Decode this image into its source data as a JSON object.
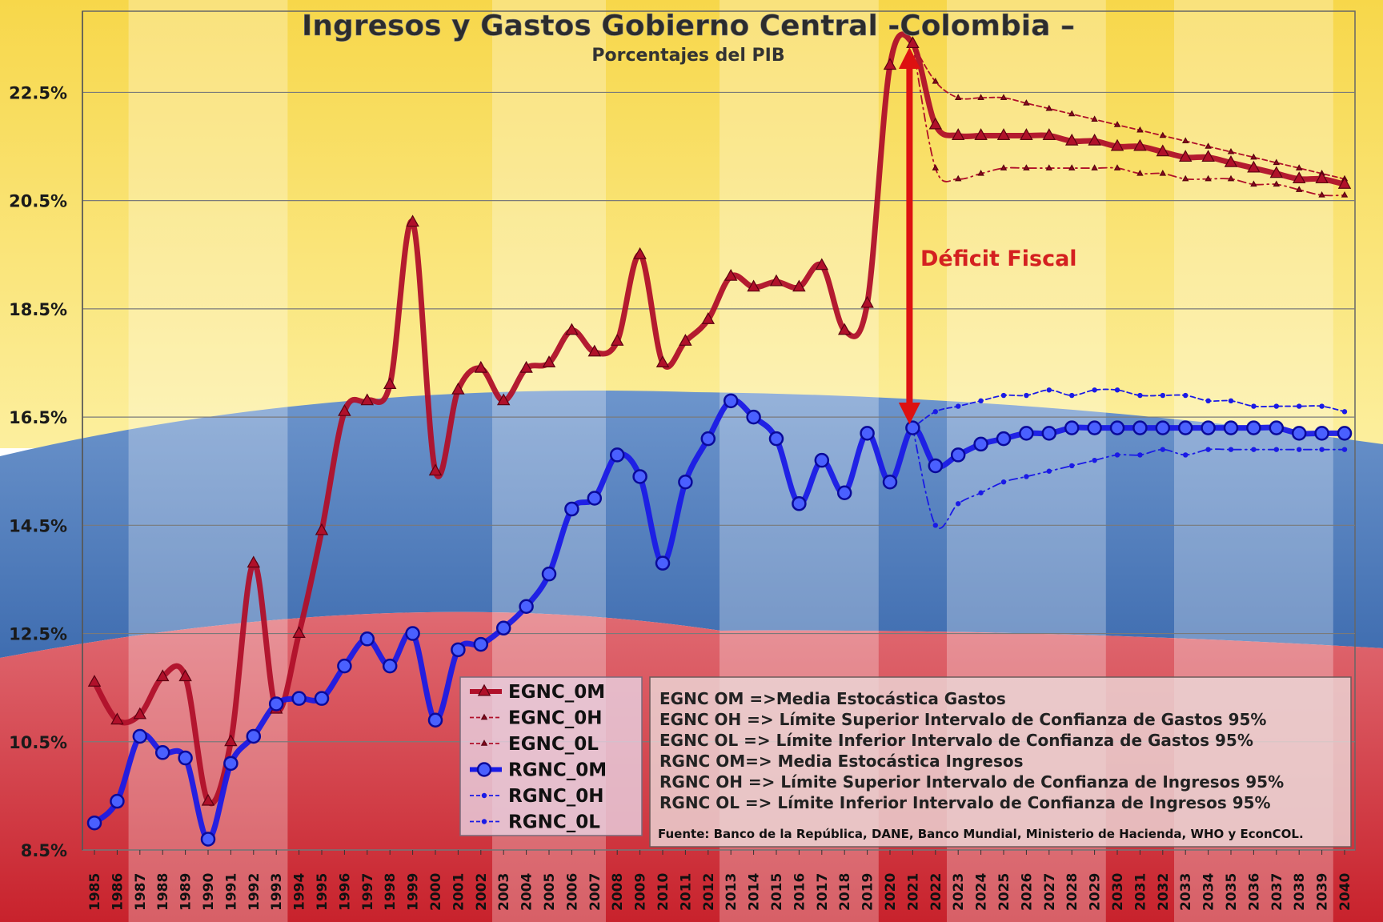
{
  "chart_data": {
    "type": "line",
    "title": "Ingresos y Gastos Gobierno Central -Colombia –",
    "subtitle": "Porcentajes del PIB",
    "ylim": [
      8.5,
      24.0
    ],
    "yticks": [
      "8.5%",
      "10.5%",
      "12.5%",
      "14.5%",
      "16.5%",
      "18.5%",
      "20.5%",
      "22.5%"
    ],
    "ytick_values": [
      8.5,
      10.5,
      12.5,
      14.5,
      16.5,
      18.5,
      20.5,
      22.5
    ],
    "x": [
      1985,
      1986,
      1987,
      1988,
      1989,
      1990,
      1991,
      1992,
      1993,
      1994,
      1995,
      1996,
      1997,
      1998,
      1999,
      2000,
      2001,
      2002,
      2003,
      2004,
      2005,
      2006,
      2007,
      2008,
      2009,
      2010,
      2011,
      2012,
      2013,
      2014,
      2015,
      2016,
      2017,
      2018,
      2019,
      2020,
      2021,
      2022,
      2023,
      2024,
      2025,
      2026,
      2027,
      2028,
      2029,
      2030,
      2031,
      2032,
      2033,
      2034,
      2035,
      2036,
      2037,
      2038,
      2039,
      2040
    ],
    "series": [
      {
        "name": "EGNC_0M",
        "color": "#b0102a",
        "marker": "triangle",
        "values": [
          11.6,
          10.9,
          11.0,
          11.7,
          11.7,
          9.4,
          10.5,
          13.8,
          11.1,
          12.5,
          14.4,
          16.6,
          16.8,
          17.1,
          20.1,
          15.5,
          17.0,
          17.4,
          16.8,
          17.4,
          17.5,
          18.1,
          17.7,
          17.9,
          19.5,
          17.5,
          17.9,
          18.3,
          19.1,
          18.9,
          19.0,
          18.9,
          19.3,
          18.1,
          18.6,
          23.0,
          23.4,
          21.9,
          21.7,
          21.7,
          21.7,
          21.7,
          21.7,
          21.6,
          21.6,
          21.5,
          21.5,
          21.4,
          21.3,
          21.3,
          21.2,
          21.1,
          21.0,
          20.9,
          20.9,
          20.8
        ]
      },
      {
        "name": "EGNC_0H",
        "color": "#b0102a",
        "marker": "small-triangle",
        "dashed": true,
        "values": [
          null,
          null,
          null,
          null,
          null,
          null,
          null,
          null,
          null,
          null,
          null,
          null,
          null,
          null,
          null,
          null,
          null,
          null,
          null,
          null,
          null,
          null,
          null,
          null,
          null,
          null,
          null,
          null,
          null,
          null,
          null,
          null,
          null,
          null,
          null,
          null,
          23.4,
          22.7,
          22.4,
          22.4,
          22.4,
          22.3,
          22.2,
          22.1,
          22.0,
          21.9,
          21.8,
          21.7,
          21.6,
          21.5,
          21.4,
          21.3,
          21.2,
          21.1,
          21.0,
          20.9
        ]
      },
      {
        "name": "EGNC_0L",
        "color": "#b0102a",
        "marker": "small-triangle",
        "dashed": true,
        "values": [
          null,
          null,
          null,
          null,
          null,
          null,
          null,
          null,
          null,
          null,
          null,
          null,
          null,
          null,
          null,
          null,
          null,
          null,
          null,
          null,
          null,
          null,
          null,
          null,
          null,
          null,
          null,
          null,
          null,
          null,
          null,
          null,
          null,
          null,
          null,
          null,
          23.4,
          21.1,
          20.9,
          21.0,
          21.1,
          21.1,
          21.1,
          21.1,
          21.1,
          21.1,
          21.0,
          21.0,
          20.9,
          20.9,
          20.9,
          20.8,
          20.8,
          20.7,
          20.6,
          20.6
        ]
      },
      {
        "name": "RGNC_0M",
        "color": "#1a1ae6",
        "marker": "circle",
        "values": [
          9.0,
          9.4,
          10.6,
          10.3,
          10.2,
          8.7,
          10.1,
          10.6,
          11.2,
          11.3,
          11.3,
          11.9,
          12.4,
          11.9,
          12.5,
          10.9,
          12.2,
          12.3,
          12.6,
          13.0,
          13.6,
          14.8,
          15.0,
          15.8,
          15.4,
          13.8,
          15.3,
          16.1,
          16.8,
          16.5,
          16.1,
          14.9,
          15.7,
          15.1,
          16.2,
          15.3,
          16.3,
          15.6,
          15.8,
          16.0,
          16.1,
          16.2,
          16.2,
          16.3,
          16.3,
          16.3,
          16.3,
          16.3,
          16.3,
          16.3,
          16.3,
          16.3,
          16.3,
          16.2,
          16.2,
          16.2
        ]
      },
      {
        "name": "RGNC_0H",
        "color": "#1a1ae6",
        "marker": "small-circle",
        "dashed": true,
        "values": [
          null,
          null,
          null,
          null,
          null,
          null,
          null,
          null,
          null,
          null,
          null,
          null,
          null,
          null,
          null,
          null,
          null,
          null,
          null,
          null,
          null,
          null,
          null,
          null,
          null,
          null,
          null,
          null,
          null,
          null,
          null,
          null,
          null,
          null,
          null,
          null,
          16.3,
          16.6,
          16.7,
          16.8,
          16.9,
          16.9,
          17.0,
          16.9,
          17.0,
          17.0,
          16.9,
          16.9,
          16.9,
          16.8,
          16.8,
          16.7,
          16.7,
          16.7,
          16.7,
          16.6
        ]
      },
      {
        "name": "RGNC_0L",
        "color": "#1a1ae6",
        "marker": "small-circle",
        "dashed": true,
        "values": [
          null,
          null,
          null,
          null,
          null,
          null,
          null,
          null,
          null,
          null,
          null,
          null,
          null,
          null,
          null,
          null,
          null,
          null,
          null,
          null,
          null,
          null,
          null,
          null,
          null,
          null,
          null,
          null,
          null,
          null,
          null,
          null,
          null,
          null,
          null,
          null,
          16.3,
          14.5,
          14.9,
          15.1,
          15.3,
          15.4,
          15.5,
          15.6,
          15.7,
          15.8,
          15.8,
          15.9,
          15.8,
          15.9,
          15.9,
          15.9,
          15.9,
          15.9,
          15.9,
          15.9
        ]
      }
    ],
    "annotation": "Déficit Fiscal",
    "annotation_year": 2021,
    "annotation_from": 23.4,
    "annotation_to": 16.3
  },
  "legend_entries": [
    "EGNC_0M",
    "EGNC_0H",
    "EGNC_0L",
    "RGNC_0M",
    "RGNC_0H",
    "RGNC_0L"
  ],
  "description_lines": [
    "EGNC OM =>Media Estocástica Gastos",
    "EGNC OH => Límite Superior Intervalo de Confianza de Gastos 95%",
    "EGNC OL => Límite Inferior Intervalo de Confianza de Gastos 95%",
    "RGNC OM=> Media Estocástica Ingresos",
    "RGNC OH => Límite Superior Intervalo de Confianza de Ingresos 95%",
    "RGNC OL => Límite Inferior Intervalo de Confianza de Ingresos 95%"
  ],
  "source_note": "Fuente: Banco de la República, DANE, Banco Mundial, Ministerio de Hacienda, WHO y EconCOL.",
  "colors": {
    "gastos": "#b0102a",
    "ingresos": "#1a1ae6",
    "arrow": "#dd1111",
    "flag_yellow": "#f8df6a",
    "flag_blue": "#3f6fb3",
    "flag_red": "#d2303a"
  }
}
